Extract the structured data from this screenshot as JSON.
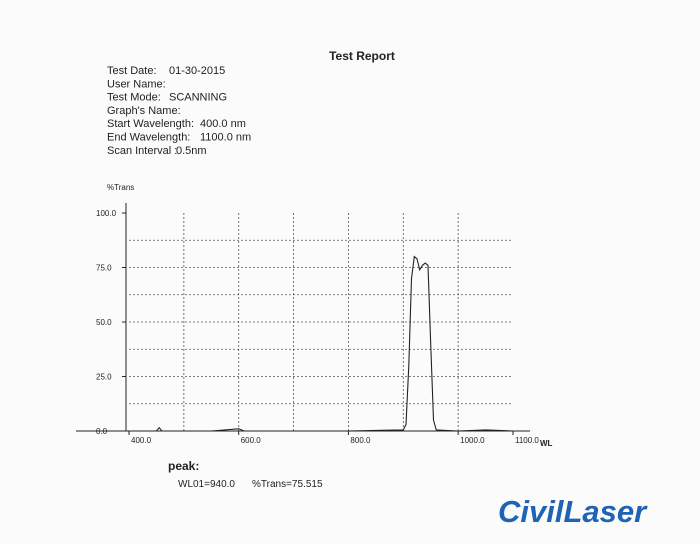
{
  "report": {
    "title": "Test Report",
    "fields": [
      {
        "label": "Test Date:",
        "value": "01-30-2015"
      },
      {
        "label": "User Name:",
        "value": ""
      },
      {
        "label": "Test Mode:",
        "value": "SCANNING"
      },
      {
        "label": "Graph's Name:",
        "value": ""
      },
      {
        "label": "Start Wavelength:",
        "value": "400.0  nm"
      },
      {
        "label": "End Wavelength:",
        "value": "1100.0  nm"
      },
      {
        "label": "Scan Interval :",
        "value": "0.5nm"
      }
    ],
    "peak_title": "peak:",
    "peak_wl": "WL01=940.0",
    "peak_trans": "%Trans=75.515",
    "logo": "CivilLaser"
  },
  "chart_data": {
    "type": "line",
    "y_label": "%Trans",
    "x_label": "WL",
    "x": [
      400,
      450,
      455,
      460,
      500,
      550,
      600,
      610,
      700,
      800,
      900,
      905,
      910,
      915,
      920,
      925,
      930,
      935,
      940,
      945,
      950,
      955,
      960,
      1000,
      1050,
      1100
    ],
    "series": [
      {
        "name": "%Trans",
        "color": "#222222",
        "values": [
          0,
          0,
          1.5,
          0,
          0,
          0,
          1,
          0,
          0,
          0,
          0.5,
          3,
          30,
          70,
          80,
          79,
          74,
          76,
          77,
          76,
          40,
          5,
          0.5,
          0,
          0.5,
          0
        ]
      }
    ],
    "xlim": [
      400,
      1100
    ],
    "ylim": [
      0,
      100
    ],
    "xticks": [
      {
        "value": 400,
        "label": "400.0"
      },
      {
        "value": 600,
        "label": "600.0"
      },
      {
        "value": 800,
        "label": "800.0"
      },
      {
        "value": 1000,
        "label": "1000.0"
      },
      {
        "value": 1100,
        "label": "1100.0"
      }
    ],
    "yticks": [
      {
        "value": 0,
        "label": "0.0"
      },
      {
        "value": 25,
        "label": "25.0"
      },
      {
        "value": 50,
        "label": "50.0"
      },
      {
        "value": 75,
        "label": "75.0"
      },
      {
        "value": 100,
        "label": "100.0"
      }
    ],
    "xgrid": [
      500,
      600,
      700,
      800,
      900,
      1000
    ],
    "ygrid": [
      12.5,
      25,
      37.5,
      50,
      62.5,
      75,
      87.5
    ],
    "grid": true
  }
}
